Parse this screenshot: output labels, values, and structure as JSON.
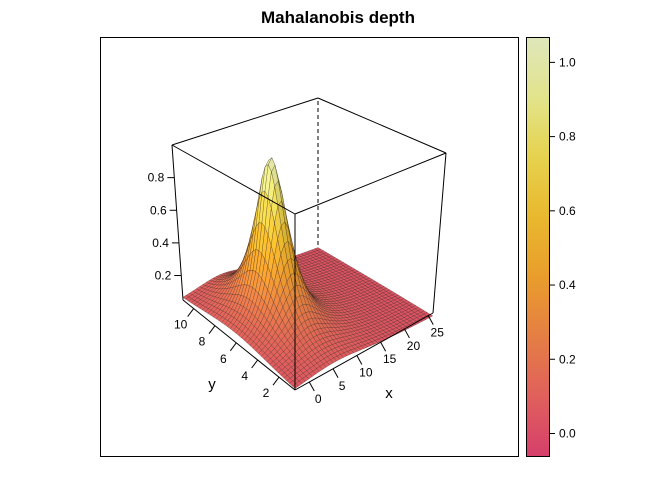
{
  "chart_data": {
    "type": "surface",
    "title": "Mahalanobis depth",
    "xlabel": "x",
    "ylabel": "y",
    "zlabel": "",
    "x_range": [
      -3,
      26
    ],
    "y_range": [
      0.5,
      11
    ],
    "z_range": [
      0.05,
      1.0
    ],
    "x_ticks": [
      0,
      5,
      10,
      15,
      20,
      25
    ],
    "y_ticks": [
      2,
      4,
      6,
      8,
      10
    ],
    "z_ticks": [
      0.2,
      0.4,
      0.6,
      0.8
    ],
    "surface_model": {
      "formula": "1/(1+d^2)",
      "center": [
        5.5,
        6.3
      ],
      "scale": [
        2.6,
        1.5
      ],
      "grid_size": 40
    },
    "colorbar": {
      "range": [
        -0.062,
        1.067
      ],
      "ticks": [
        0.0,
        0.2,
        0.4,
        0.6,
        0.8,
        1.0
      ],
      "tick_labels": [
        "0.0",
        "0.2",
        "0.4",
        "0.6",
        "0.8",
        "1.0"
      ],
      "colors": [
        "#d63f6b",
        "#e0605c",
        "#e57e44",
        "#e99d2c",
        "#e9b82e",
        "#e6d24e",
        "#e2e48c",
        "#dfe6bb"
      ]
    },
    "grid": false,
    "legend": "right"
  }
}
